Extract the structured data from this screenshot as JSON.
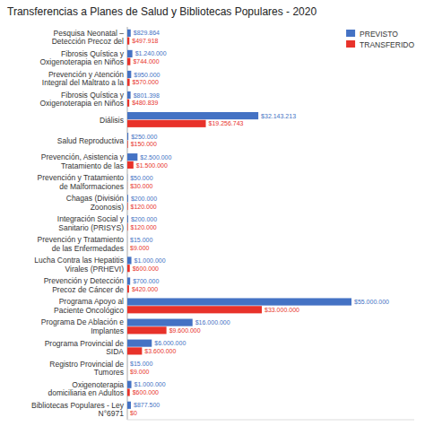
{
  "chart_data": {
    "type": "bar",
    "orientation": "horizontal",
    "title": "Transferencias a Planes de Salud y Bibliotecas Populares - 2020",
    "categories": [
      "Pesquisa Neonatal –\nDetección Precoz del",
      "Fibrosis Quística y\nOxigenoterapia en Niños",
      "Prevención y Atención\nIntegral del Maltrato a la",
      "Fibrosis Quística y\nOxigenoterapia en Niños",
      "Diálisis",
      "Salud Reproductiva",
      "Prevención, Asistencia y\nTratamiento de las",
      "Prevención y Tratamiento\nde Malformaciones",
      "Chagas (División\nZoonosis)",
      "Integración Social y\nSanitario (PRISYS)",
      "Prevención y Tratamiento\nde las Enfermedades",
      "Lucha Contra las Hepatitis\nVirales (PRHEVI)",
      "Prevención y Detección\nPrecoz de Cáncer de",
      "Programa Apoyo al\nPaciente Oncológico",
      "Programa De Ablación e\nImplantes",
      "Programa Provincial de\nSIDA",
      "Registro Provincial de\nTumores",
      "Oxigenoterapia\ndomiciliaria en Adultos",
      "Bibliotecas Populares - Ley\nN°6971"
    ],
    "series": [
      {
        "name": "PREVISTO",
        "color": "#4472C4",
        "values": [
          829864,
          1240000,
          950000,
          801398,
          32143213,
          250000,
          2500000,
          50000,
          200000,
          200000,
          15000,
          1000000,
          700000,
          55000000,
          16000000,
          6000000,
          15000,
          1000000,
          877500
        ],
        "value_labels": [
          "$829.864",
          "$1.240.000",
          "$950.000",
          "$801.398",
          "$32.143.213",
          "$250.000",
          "$2.500.000",
          "$50.000",
          "$200.000",
          "$200.000",
          "$15.000",
          "$1.000.000",
          "$700.000",
          "$55.000.000",
          "$16.000.000",
          "$6.000.000",
          "$15.000",
          "$1.000.000",
          "$877.500"
        ]
      },
      {
        "name": "TRANSFERIDO",
        "color": "#E8322A",
        "values": [
          497918,
          744000,
          570000,
          480839,
          19256743,
          150000,
          1500000,
          30000,
          120000,
          120000,
          9000,
          600000,
          420000,
          33000000,
          9600000,
          3600000,
          9000,
          600000,
          0
        ],
        "value_labels": [
          "$497.918",
          "$744.000",
          "$570.000",
          "$480.839",
          "$19.256.743",
          "$150.000",
          "$1.500.000",
          "$30.000",
          "$120.000",
          "$120.000",
          "$9.000",
          "$600.000",
          "$420.000",
          "$33.000.000",
          "$9.600.000",
          "$3.600.000",
          "$9.000",
          "$600.000",
          "$0"
        ]
      }
    ],
    "xlim": [
      0,
      70400000
    ],
    "data_labels": true,
    "tick_labels": "y",
    "legend": "upper right",
    "grid": false
  }
}
